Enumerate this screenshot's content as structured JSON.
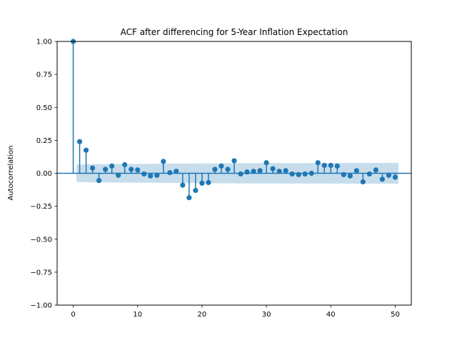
{
  "chart_data": {
    "type": "stem",
    "title": "ACF after differencing for 5-Year Inflation Expectation",
    "xlabel": "",
    "ylabel": "Autocorrelation",
    "xlim": [
      -2.5,
      52.5
    ],
    "ylim": [
      -1.0,
      1.0
    ],
    "x_ticks": [
      0,
      10,
      20,
      30,
      40,
      50
    ],
    "y_ticks": [
      -1.0,
      -0.75,
      -0.5,
      -0.25,
      0.0,
      0.25,
      0.5,
      0.75,
      1.0
    ],
    "x_tick_labels": [
      "0",
      "10",
      "20",
      "30",
      "40",
      "50"
    ],
    "y_tick_labels": [
      "−1.00",
      "−0.75",
      "−0.50",
      "−0.25",
      "0.00",
      "0.25",
      "0.50",
      "0.75",
      "1.00"
    ],
    "grid": false,
    "colors": {
      "stem": "#1f77b4",
      "band": "#1f77b4",
      "zero_line": "#1f77b4"
    },
    "lags": [
      0,
      1,
      2,
      3,
      4,
      5,
      6,
      7,
      8,
      9,
      10,
      11,
      12,
      13,
      14,
      15,
      16,
      17,
      18,
      19,
      20,
      21,
      22,
      23,
      24,
      25,
      26,
      27,
      28,
      29,
      30,
      31,
      32,
      33,
      34,
      35,
      36,
      37,
      38,
      39,
      40,
      41,
      42,
      43,
      44,
      45,
      46,
      47,
      48,
      49,
      50
    ],
    "values": [
      1.0,
      0.24,
      0.175,
      0.04,
      -0.055,
      0.03,
      0.055,
      -0.015,
      0.065,
      0.03,
      0.025,
      -0.005,
      -0.02,
      -0.015,
      0.09,
      0.005,
      0.015,
      -0.09,
      -0.185,
      -0.13,
      -0.075,
      -0.07,
      0.03,
      0.055,
      0.03,
      0.095,
      -0.005,
      0.01,
      0.015,
      0.02,
      0.08,
      0.035,
      0.015,
      0.02,
      -0.005,
      -0.01,
      -0.005,
      0.0,
      0.08,
      0.06,
      0.06,
      0.055,
      -0.01,
      -0.02,
      0.02,
      -0.065,
      -0.005,
      0.025,
      -0.045,
      -0.015,
      -0.03
    ],
    "confidence_band": {
      "lags": [
        0.5,
        1,
        2,
        3,
        4,
        5,
        10,
        15,
        20,
        30,
        40,
        50,
        50.5
      ],
      "upper": [
        0.066,
        0.066,
        0.068,
        0.07,
        0.07,
        0.07,
        0.071,
        0.073,
        0.075,
        0.077,
        0.078,
        0.079,
        0.079
      ],
      "lower": [
        -0.066,
        -0.066,
        -0.068,
        -0.07,
        -0.07,
        -0.07,
        -0.071,
        -0.073,
        -0.075,
        -0.077,
        -0.078,
        -0.079,
        -0.079
      ]
    }
  }
}
